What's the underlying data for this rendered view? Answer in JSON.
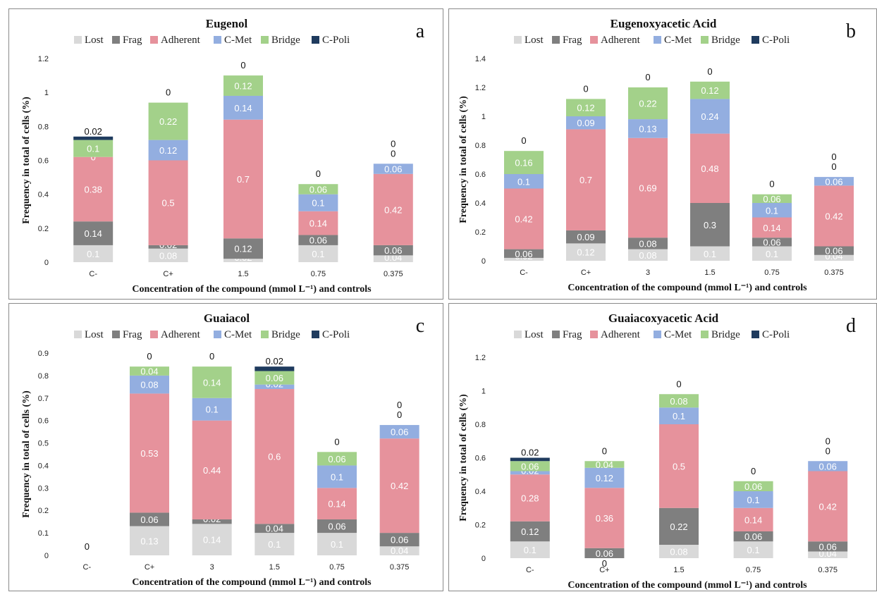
{
  "colors": {
    "Lost": "#d9d9d9",
    "Frag": "#7f7f7f",
    "Adherent": "#e6929c",
    "C-Met": "#93aee0",
    "Bridge": "#a3d18a",
    "C-Poli": "#1f3b5e"
  },
  "chart_data": [
    {
      "id": "a",
      "type": "bar",
      "stacked": true,
      "title": "Eugenol",
      "panel_letter": "a",
      "ylabel": "Frequency in total of cells (%)",
      "xlabel": "Concentration of the compound (mmol L⁻¹) and controls",
      "ylim": [
        0,
        1.2
      ],
      "yticks": [
        "0",
        "0.2",
        "0.4",
        "0.6",
        "0.8",
        "1",
        "1.2"
      ],
      "legend": [
        "Lost",
        "Frag",
        "Adherent",
        "C-Met",
        "Bridge",
        "C-Poli"
      ],
      "legend_position": "top",
      "categories": [
        "C-",
        "C+",
        "1.5",
        "0.75",
        "0.375"
      ],
      "series": [
        {
          "name": "Lost",
          "values": [
            0.1,
            0.08,
            0.02,
            0.1,
            0.04
          ]
        },
        {
          "name": "Frag",
          "values": [
            0.14,
            0.02,
            0.12,
            0.06,
            0.06
          ]
        },
        {
          "name": "Adherent",
          "values": [
            0.38,
            0.5,
            0.7,
            0.14,
            0.42
          ]
        },
        {
          "name": "C-Met",
          "values": [
            0,
            0.12,
            0.14,
            0.1,
            0.06
          ]
        },
        {
          "name": "Bridge",
          "values": [
            0.1,
            0.22,
            0.12,
            0.06,
            0
          ]
        },
        {
          "name": "C-Poli",
          "values": [
            0.02,
            0,
            0,
            0,
            0
          ]
        }
      ],
      "labels": [
        [
          "0.1",
          "0.14",
          "0.38",
          "0",
          "0.1",
          "0.02"
        ],
        [
          "0.08",
          "0.02",
          "0.5",
          "0.12",
          "0.22",
          "0"
        ],
        [
          "0.02",
          "0.12",
          "0.7",
          "0.14",
          "0.12",
          "0"
        ],
        [
          "0.1",
          "0.06",
          "0.14",
          "0.1",
          "0.06",
          "0"
        ],
        [
          "0.04",
          "0.06",
          "0.42",
          "0.06",
          "0",
          "0"
        ]
      ]
    },
    {
      "id": "b",
      "type": "bar",
      "stacked": true,
      "title": "Eugenoxyacetic Acid",
      "panel_letter": "b",
      "ylabel": "Frequency in total of cells (%)",
      "xlabel": "Concentration of the compound (mmol L⁻¹) and controls",
      "ylim": [
        0,
        1.4
      ],
      "yticks": [
        "0",
        "0.2",
        "0.4",
        "0.6",
        "0.8",
        "1",
        "1.2",
        "1.4"
      ],
      "legend": [
        "Lost",
        "Frag",
        "Adherent",
        "C-Met",
        "Bridge",
        "C-Poli"
      ],
      "legend_position": "top",
      "categories": [
        "C-",
        "C+",
        "3",
        "1.5",
        "0.75",
        "0.375"
      ],
      "series": [
        {
          "name": "Lost",
          "values": [
            0.02,
            0.12,
            0.08,
            0.1,
            0.1,
            0.04
          ]
        },
        {
          "name": "Frag",
          "values": [
            0.06,
            0.09,
            0.08,
            0.3,
            0.06,
            0.06
          ]
        },
        {
          "name": "Adherent",
          "values": [
            0.42,
            0.7,
            0.69,
            0.48,
            0.14,
            0.42
          ]
        },
        {
          "name": "C-Met",
          "values": [
            0.1,
            0.09,
            0.13,
            0.24,
            0.1,
            0.06
          ]
        },
        {
          "name": "Bridge",
          "values": [
            0.16,
            0.12,
            0.22,
            0.12,
            0.06,
            0
          ]
        },
        {
          "name": "C-Poli",
          "values": [
            0,
            0,
            0,
            0,
            0,
            0
          ]
        }
      ],
      "labels": [
        [
          "0.02",
          "0.06",
          "0.42",
          "0.1",
          "0.16",
          "0"
        ],
        [
          "0.12",
          "0.09",
          "0.7",
          "0.09",
          "0.12",
          "0"
        ],
        [
          "0.08",
          "0.08",
          "0.69",
          "0.13",
          "0.22",
          "0"
        ],
        [
          "0.1",
          "0.3",
          "0.48",
          "0.24",
          "0.12",
          "0"
        ],
        [
          "0.1",
          "0.06",
          "0.14",
          "0.1",
          "0.06",
          "0"
        ],
        [
          "0.04",
          "0.06",
          "0.42",
          "0.06",
          "0",
          "0"
        ]
      ]
    },
    {
      "id": "c",
      "type": "bar",
      "stacked": true,
      "title": "Guaiacol",
      "panel_letter": "c",
      "ylabel": "Frequency in total of cells (%)",
      "xlabel": "Concentration of the compound (mmol L⁻¹) and controls",
      "ylim": [
        0,
        0.9
      ],
      "yticks": [
        "0",
        "0.1",
        "0.2",
        "0.3",
        "0.4",
        "0.5",
        "0.6",
        "0.7",
        "0.8",
        "0.9"
      ],
      "legend": [
        "Lost",
        "Frag",
        "Adherent",
        "C-Met",
        "Bridge",
        "C-Poli"
      ],
      "legend_position": "top",
      "categories": [
        "C-",
        "C+",
        "3",
        "1.5",
        "0.75",
        "0.375"
      ],
      "series": [
        {
          "name": "Lost",
          "values": [
            0,
            0.13,
            0.14,
            0.1,
            0.1,
            0.04
          ]
        },
        {
          "name": "Frag",
          "values": [
            0,
            0.06,
            0.02,
            0.04,
            0.06,
            0.06
          ]
        },
        {
          "name": "Adherent",
          "values": [
            0,
            0.53,
            0.44,
            0.6,
            0.14,
            0.42
          ]
        },
        {
          "name": "C-Met",
          "values": [
            0,
            0.08,
            0.1,
            0.02,
            0.1,
            0.06
          ]
        },
        {
          "name": "Bridge",
          "values": [
            0,
            0.04,
            0.14,
            0.06,
            0.06,
            0
          ]
        },
        {
          "name": "C-Poli",
          "values": [
            0,
            0,
            0,
            0.02,
            0,
            0
          ]
        }
      ],
      "labels": [
        [
          null,
          null,
          null,
          null,
          null,
          "0"
        ],
        [
          "0.13",
          "0.06",
          "0.53",
          "0.08",
          "0.04",
          "0"
        ],
        [
          "0.14",
          "0.02",
          "0.44",
          "0.1",
          "0.14",
          "0"
        ],
        [
          "0.1",
          "0.04",
          "0.6",
          "0.02",
          "0.06",
          "0.02"
        ],
        [
          "0.1",
          "0.06",
          "0.14",
          "0.1",
          "0.06",
          "0"
        ],
        [
          "0.04",
          "0.06",
          "0.42",
          "0.06",
          "0",
          "0"
        ]
      ]
    },
    {
      "id": "d",
      "type": "bar",
      "stacked": true,
      "title": "Guaiacoxyacetic Acid",
      "panel_letter": "d",
      "ylabel": "Frequency in total of cells (%)",
      "xlabel": "Concentration of the compound (mmol L⁻¹) and controls",
      "ylim": [
        0,
        1.2
      ],
      "yticks": [
        "0",
        "0.2",
        "0.4",
        "0.6",
        "0.8",
        "1",
        "1.2"
      ],
      "legend": [
        "Lost",
        "Frag",
        "Adherent",
        "C-Met",
        "Bridge",
        "C-Poli"
      ],
      "legend_position": "top",
      "categories": [
        "C-",
        "C+",
        "1.5",
        "0.75",
        "0.375"
      ],
      "series": [
        {
          "name": "Lost",
          "values": [
            0.1,
            0,
            0.08,
            0.1,
            0.04
          ]
        },
        {
          "name": "Frag",
          "values": [
            0.12,
            0.06,
            0.22,
            0.06,
            0.06
          ]
        },
        {
          "name": "Adherent",
          "values": [
            0.28,
            0.36,
            0.5,
            0.14,
            0.42
          ]
        },
        {
          "name": "C-Met",
          "values": [
            0.02,
            0.12,
            0.1,
            0.1,
            0.06
          ]
        },
        {
          "name": "Bridge",
          "values": [
            0.06,
            0.04,
            0.08,
            0.06,
            0
          ]
        },
        {
          "name": "C-Poli",
          "values": [
            0.02,
            0,
            0,
            0,
            0
          ]
        }
      ],
      "labels": [
        [
          "0.1",
          "0.12",
          "0.28",
          "0.02",
          "0.06",
          "0.02"
        ],
        [
          "0",
          "0.06",
          "0.36",
          "0.12",
          "0.04",
          "0"
        ],
        [
          "0.08",
          "0.22",
          "0.5",
          "0.1",
          "0.08",
          "0"
        ],
        [
          "0.1",
          "0.06",
          "0.14",
          "0.1",
          "0.06",
          "0"
        ],
        [
          "0.04",
          "0.06",
          "0.42",
          "0.06",
          "0",
          "0"
        ]
      ]
    }
  ]
}
